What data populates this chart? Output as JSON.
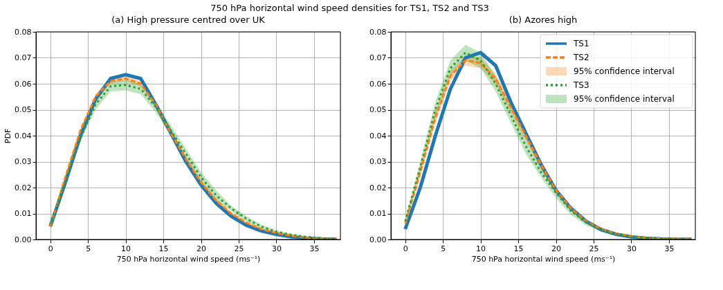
{
  "chart_data": [
    {
      "type": "line",
      "title": "750 hPa horizontal wind speed densities for TS1, TS2 and TS3",
      "subtitle": "(a) High pressure centred over UK",
      "xlabel": "750 hPa horizontal wind speed (ms⁻¹)",
      "ylabel": "PDF",
      "x": [
        0,
        2,
        4,
        6,
        8,
        10,
        12,
        14,
        16,
        18,
        20,
        22,
        24,
        26,
        28,
        30,
        32,
        34,
        36,
        38
      ],
      "xlim": [
        -1.9,
        38.5
      ],
      "ylim": [
        0,
        0.08
      ],
      "xticks": [
        0,
        5,
        10,
        15,
        20,
        25,
        30,
        35
      ],
      "yticks": [
        {
          "value": 0,
          "label": "0.00"
        },
        {
          "value": 0.01,
          "label": "0.01"
        },
        {
          "value": 0.02,
          "label": "0.02"
        },
        {
          "value": 0.03,
          "label": "0.03"
        },
        {
          "value": 0.04,
          "label": "0.04"
        },
        {
          "value": 0.05,
          "label": "0.05"
        },
        {
          "value": 0.06,
          "label": "0.06"
        },
        {
          "value": 0.07,
          "label": "0.07"
        },
        {
          "value": 0.08,
          "label": "0.08"
        }
      ],
      "grid": true,
      "series": [
        {
          "color": "#1f77b4",
          "line_style": "solid",
          "values": [
            0.005,
            0.022,
            0.04,
            0.054,
            0.062,
            0.0635,
            0.062,
            0.052,
            0.041,
            0.03,
            0.021,
            0.014,
            0.009,
            0.0055,
            0.0033,
            0.002,
            0.001,
            0.0005,
            0.0002,
            0.0001
          ]
        },
        {
          "color": "#ff7f0e",
          "line_style": "dashed",
          "values": [
            0.005,
            0.024,
            0.042,
            0.055,
            0.061,
            0.062,
            0.06,
            0.052,
            0.041,
            0.031,
            0.022,
            0.015,
            0.01,
            0.0065,
            0.004,
            0.0025,
            0.0014,
            0.0007,
            0.0003,
            0.0001
          ],
          "lower": [
            0.005,
            0.023,
            0.041,
            0.054,
            0.06,
            0.061,
            0.059,
            0.051,
            0.04,
            0.03,
            0.021,
            0.014,
            0.0095,
            0.006,
            0.0037,
            0.0022,
            0.0012,
            0.0006,
            0.0002,
            0.0001
          ],
          "upper": [
            0.006,
            0.025,
            0.043,
            0.056,
            0.062,
            0.063,
            0.061,
            0.053,
            0.042,
            0.032,
            0.023,
            0.016,
            0.0105,
            0.007,
            0.0043,
            0.0028,
            0.0016,
            0.0008,
            0.0004,
            0.0002
          ]
        },
        {
          "color": "#2ca02c",
          "line_style": "dotted",
          "values": [
            0.006,
            0.022,
            0.039,
            0.052,
            0.059,
            0.0595,
            0.058,
            0.051,
            0.042,
            0.033,
            0.024,
            0.017,
            0.012,
            0.008,
            0.005,
            0.003,
            0.0018,
            0.001,
            0.0005,
            0.0002
          ],
          "lower": [
            0.005,
            0.021,
            0.038,
            0.05,
            0.057,
            0.0575,
            0.056,
            0.049,
            0.04,
            0.031,
            0.022,
            0.015,
            0.011,
            0.007,
            0.0043,
            0.0025,
            0.0014,
            0.0007,
            0.0003,
            0.0001
          ],
          "upper": [
            0.007,
            0.023,
            0.04,
            0.054,
            0.061,
            0.0615,
            0.06,
            0.053,
            0.044,
            0.035,
            0.026,
            0.019,
            0.013,
            0.009,
            0.0057,
            0.0035,
            0.0022,
            0.0013,
            0.0007,
            0.0003
          ]
        }
      ]
    },
    {
      "type": "line",
      "subtitle": "(b) Azores high",
      "xlabel": "750 hPa horizontal wind speed (ms⁻¹)",
      "x": [
        0,
        2,
        4,
        6,
        8,
        10,
        12,
        14,
        16,
        18,
        20,
        22,
        24,
        26,
        28,
        30,
        32,
        34,
        36,
        38
      ],
      "xlim": [
        -1.9,
        38.5
      ],
      "ylim": [
        0,
        0.08
      ],
      "xticks": [
        0,
        5,
        10,
        15,
        20,
        25,
        30,
        35
      ],
      "yticks": [
        {
          "value": 0,
          "label": "0.00"
        },
        {
          "value": 0.01,
          "label": "0.01"
        },
        {
          "value": 0.02,
          "label": "0.02"
        },
        {
          "value": 0.03,
          "label": "0.03"
        },
        {
          "value": 0.04,
          "label": "0.04"
        },
        {
          "value": 0.05,
          "label": "0.05"
        },
        {
          "value": 0.06,
          "label": "0.06"
        },
        {
          "value": 0.07,
          "label": "0.07"
        },
        {
          "value": 0.08,
          "label": "0.08"
        }
      ],
      "grid": true,
      "legend": "top right",
      "annotations": [
        "95% confidence interval",
        "95% confidence interval"
      ],
      "series": [
        {
          "name": "TS1",
          "color": "#1f77b4",
          "line_style": "solid",
          "values": [
            0.004,
            0.02,
            0.04,
            0.058,
            0.07,
            0.072,
            0.067,
            0.053,
            0.041,
            0.029,
            0.019,
            0.012,
            0.007,
            0.0038,
            0.002,
            0.001,
            0.0005,
            0.0002,
            0.0001,
            0.0001
          ]
        },
        {
          "name": "TS2",
          "color": "#ff7f0e",
          "line_style": "dashed",
          "values": [
            0.006,
            0.026,
            0.047,
            0.063,
            0.069,
            0.068,
            0.062,
            0.051,
            0.04,
            0.029,
            0.019,
            0.012,
            0.007,
            0.004,
            0.0022,
            0.0012,
            0.0006,
            0.0003,
            0.0001,
            0.0001
          ],
          "lower": [
            0.005,
            0.024,
            0.045,
            0.061,
            0.067,
            0.066,
            0.06,
            0.049,
            0.038,
            0.027,
            0.018,
            0.011,
            0.0065,
            0.0035,
            0.0018,
            0.0009,
            0.0004,
            0.0002,
            0.0001,
            0.0
          ],
          "upper": [
            0.007,
            0.028,
            0.049,
            0.065,
            0.071,
            0.07,
            0.064,
            0.053,
            0.042,
            0.031,
            0.02,
            0.013,
            0.0075,
            0.0045,
            0.0026,
            0.0015,
            0.0008,
            0.0004,
            0.0002,
            0.0001
          ]
        },
        {
          "name": "TS3",
          "color": "#2ca02c",
          "line_style": "dotted",
          "values": [
            0.007,
            0.028,
            0.05,
            0.066,
            0.072,
            0.069,
            0.06,
            0.048,
            0.036,
            0.026,
            0.018,
            0.011,
            0.0065,
            0.0038,
            0.002,
            0.0011,
            0.0006,
            0.0003,
            0.0001,
            0.0001
          ],
          "lower": [
            0.006,
            0.026,
            0.047,
            0.063,
            0.069,
            0.066,
            0.057,
            0.045,
            0.033,
            0.024,
            0.016,
            0.0095,
            0.0055,
            0.003,
            0.0015,
            0.0008,
            0.0004,
            0.0002,
            0.0,
            0.0
          ],
          "upper": [
            0.008,
            0.03,
            0.053,
            0.069,
            0.075,
            0.072,
            0.063,
            0.051,
            0.039,
            0.028,
            0.02,
            0.0125,
            0.0075,
            0.0046,
            0.0025,
            0.0014,
            0.0008,
            0.0004,
            0.0002,
            0.0001
          ]
        }
      ]
    }
  ]
}
